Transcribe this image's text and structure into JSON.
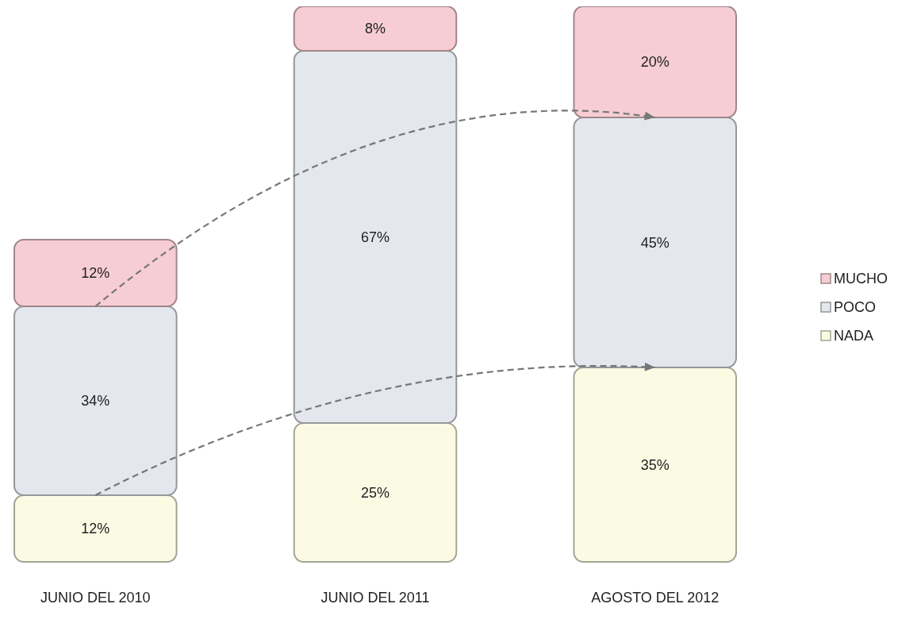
{
  "chart_data": {
    "type": "bar",
    "stacked": true,
    "legend": "right",
    "categories": [
      "JUNIO DEL 2010",
      "JUNIO DEL 2011",
      "AGOSTO DEL 2012"
    ],
    "series": [
      {
        "name": "NADA",
        "color": "#fbfbe4",
        "values": [
          12,
          25,
          35
        ],
        "value_labels": [
          "12%",
          "25%",
          "35%"
        ]
      },
      {
        "name": "POCO",
        "color": "#e4e7ee",
        "values": [
          34,
          67,
          45
        ],
        "value_labels": [
          "34%",
          "67%",
          "45%"
        ]
      },
      {
        "name": "MUCHO",
        "color": "#f7cdd4",
        "values": [
          12,
          8,
          20
        ],
        "value_labels": [
          "12%",
          "8%",
          "20%"
        ]
      }
    ]
  }
}
